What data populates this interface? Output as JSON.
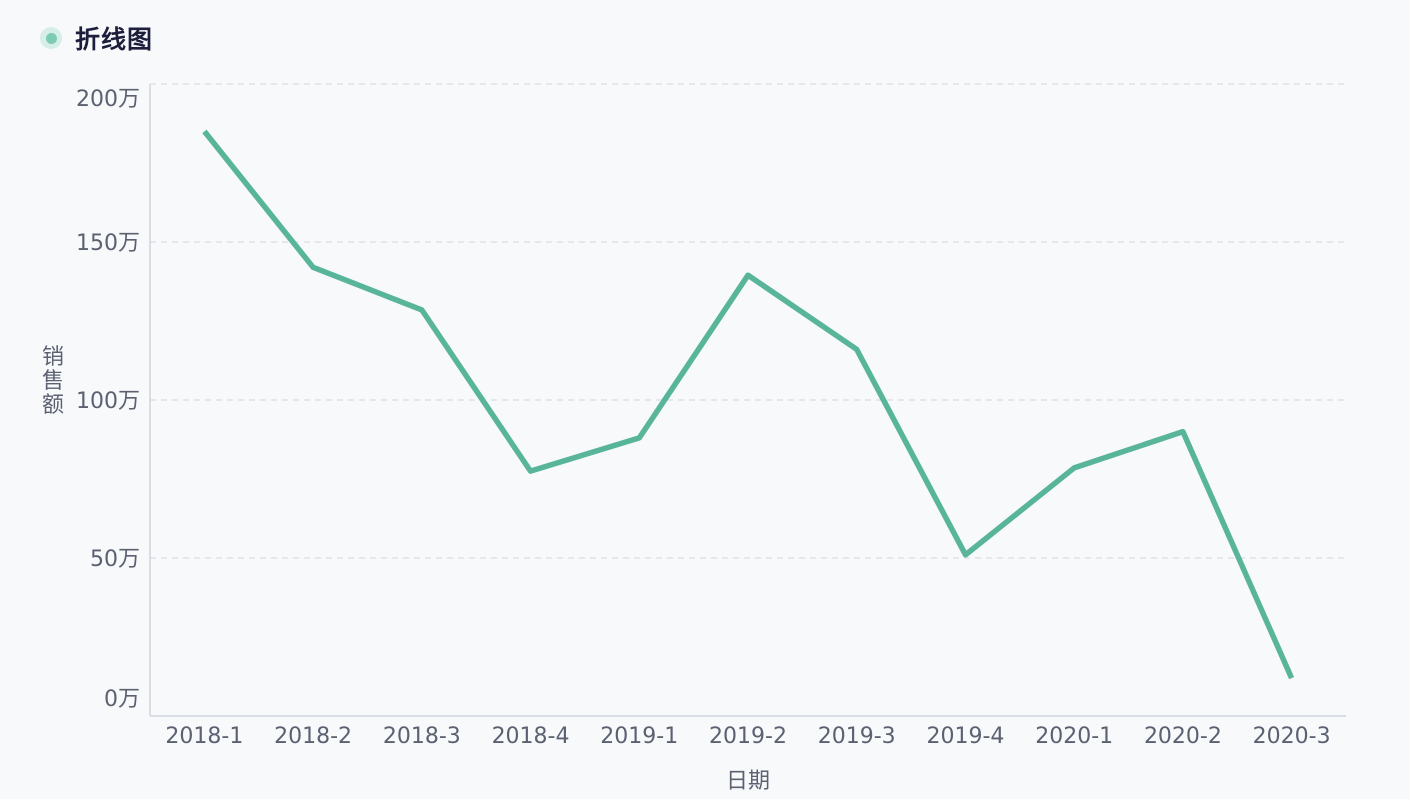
{
  "header": {
    "title": "折线图"
  },
  "colors": {
    "line": "#58b59a",
    "grid": "#dde1e7",
    "axis": "#cfd4dc",
    "tick_text": "#5b6171",
    "title": "#1c1e3b",
    "background": "#f7f9fb"
  },
  "chart_data": {
    "type": "line",
    "title": "折线图",
    "xlabel": "日期",
    "ylabel": "销售额",
    "categories": [
      "2018-1",
      "2018-2",
      "2018-3",
      "2018-4",
      "2019-1",
      "2019-2",
      "2019-3",
      "2019-4",
      "2020-1",
      "2020-2",
      "2020-3"
    ],
    "series": [
      {
        "values": [
          1850000,
          1420000,
          1285000,
          775000,
          880000,
          1395000,
          1160000,
          510000,
          785000,
          900000,
          120000
        ]
      }
    ],
    "ylim": [
      0,
      2000000
    ],
    "yticks": [
      {
        "value": 0,
        "label": "0万"
      },
      {
        "value": 500000,
        "label": "50万"
      },
      {
        "value": 1000000,
        "label": "100万"
      },
      {
        "value": 1500000,
        "label": "150万"
      },
      {
        "value": 2000000,
        "label": "200万"
      }
    ],
    "grid": true,
    "legend": "none"
  }
}
